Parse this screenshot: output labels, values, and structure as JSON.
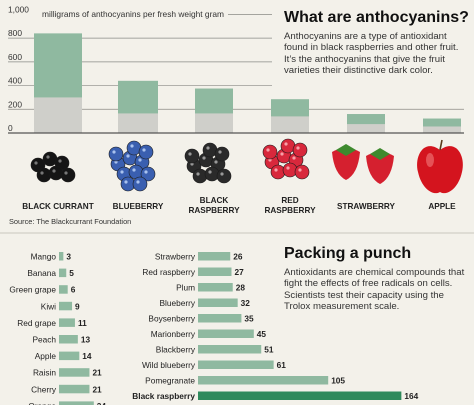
{
  "chart_data": [
    {
      "type": "bar",
      "ylabel": "milligrams of anthocyanins per fresh weight gram",
      "yticks": [
        0,
        200,
        400,
        600,
        800,
        1000
      ],
      "ytick_labels": [
        "0",
        "200",
        "400",
        "600",
        "800",
        "1,000"
      ],
      "ylim": [
        0,
        1000
      ],
      "categories": [
        "BLACK CURRANT",
        "BLUEBERRY",
        "BLACK RASPBERRY",
        "RED RASPBERRY",
        "STRAWBERRY",
        "APPLE"
      ],
      "values": [
        840,
        440,
        375,
        285,
        160,
        122
      ],
      "inner_values": [
        300,
        165,
        165,
        140,
        75,
        55
      ],
      "grid": true,
      "colors": {
        "bar": "#8fb9a0",
        "inner": "#cfcfca",
        "axis": "#555555"
      },
      "icons": [
        "black-currant-icon",
        "blueberry-icon",
        "black-raspberry-icon",
        "red-raspberry-icon",
        "strawberry-icon",
        "apple-icon"
      ]
    },
    {
      "type": "bar",
      "orientation": "horizontal",
      "categories": [
        "Mango",
        "Banana",
        "Green grape",
        "Kiwi",
        "Red grape",
        "Peach",
        "Apple",
        "Raisin",
        "Cherry",
        "Orange"
      ],
      "values": [
        3,
        5,
        6,
        9,
        11,
        13,
        14,
        21,
        21,
        24
      ],
      "colors": {
        "bar": "#8fb9a0"
      }
    },
    {
      "type": "bar",
      "orientation": "horizontal",
      "categories": [
        "Strawberry",
        "Red raspberry",
        "Plum",
        "Blueberry",
        "Boysenberry",
        "Marionberry",
        "Blackberry",
        "Wild blueberry",
        "Pomegranate",
        "Black raspberry"
      ],
      "values": [
        26,
        27,
        28,
        32,
        35,
        45,
        51,
        61,
        105,
        164
      ],
      "highlight": "Black raspberry",
      "colors": {
        "bar": "#8fb9a0",
        "highlight": "#2f8a5c"
      }
    }
  ],
  "section1": {
    "title": "What are anthocyanins?",
    "description": "Anthocyanins are a type of antioxidant found in black raspberries and other fruit. It’s the anthocyanins that give the fruit varieties their distinctive dark color."
  },
  "section2": {
    "title": "Packing a punch",
    "description": "Antioxidants are chemical compounds that fight the effects of free radicals on cells. Scientists test their capacity using the Trolox measurement scale."
  },
  "source": "Source: The Blackcurrant Foundation"
}
